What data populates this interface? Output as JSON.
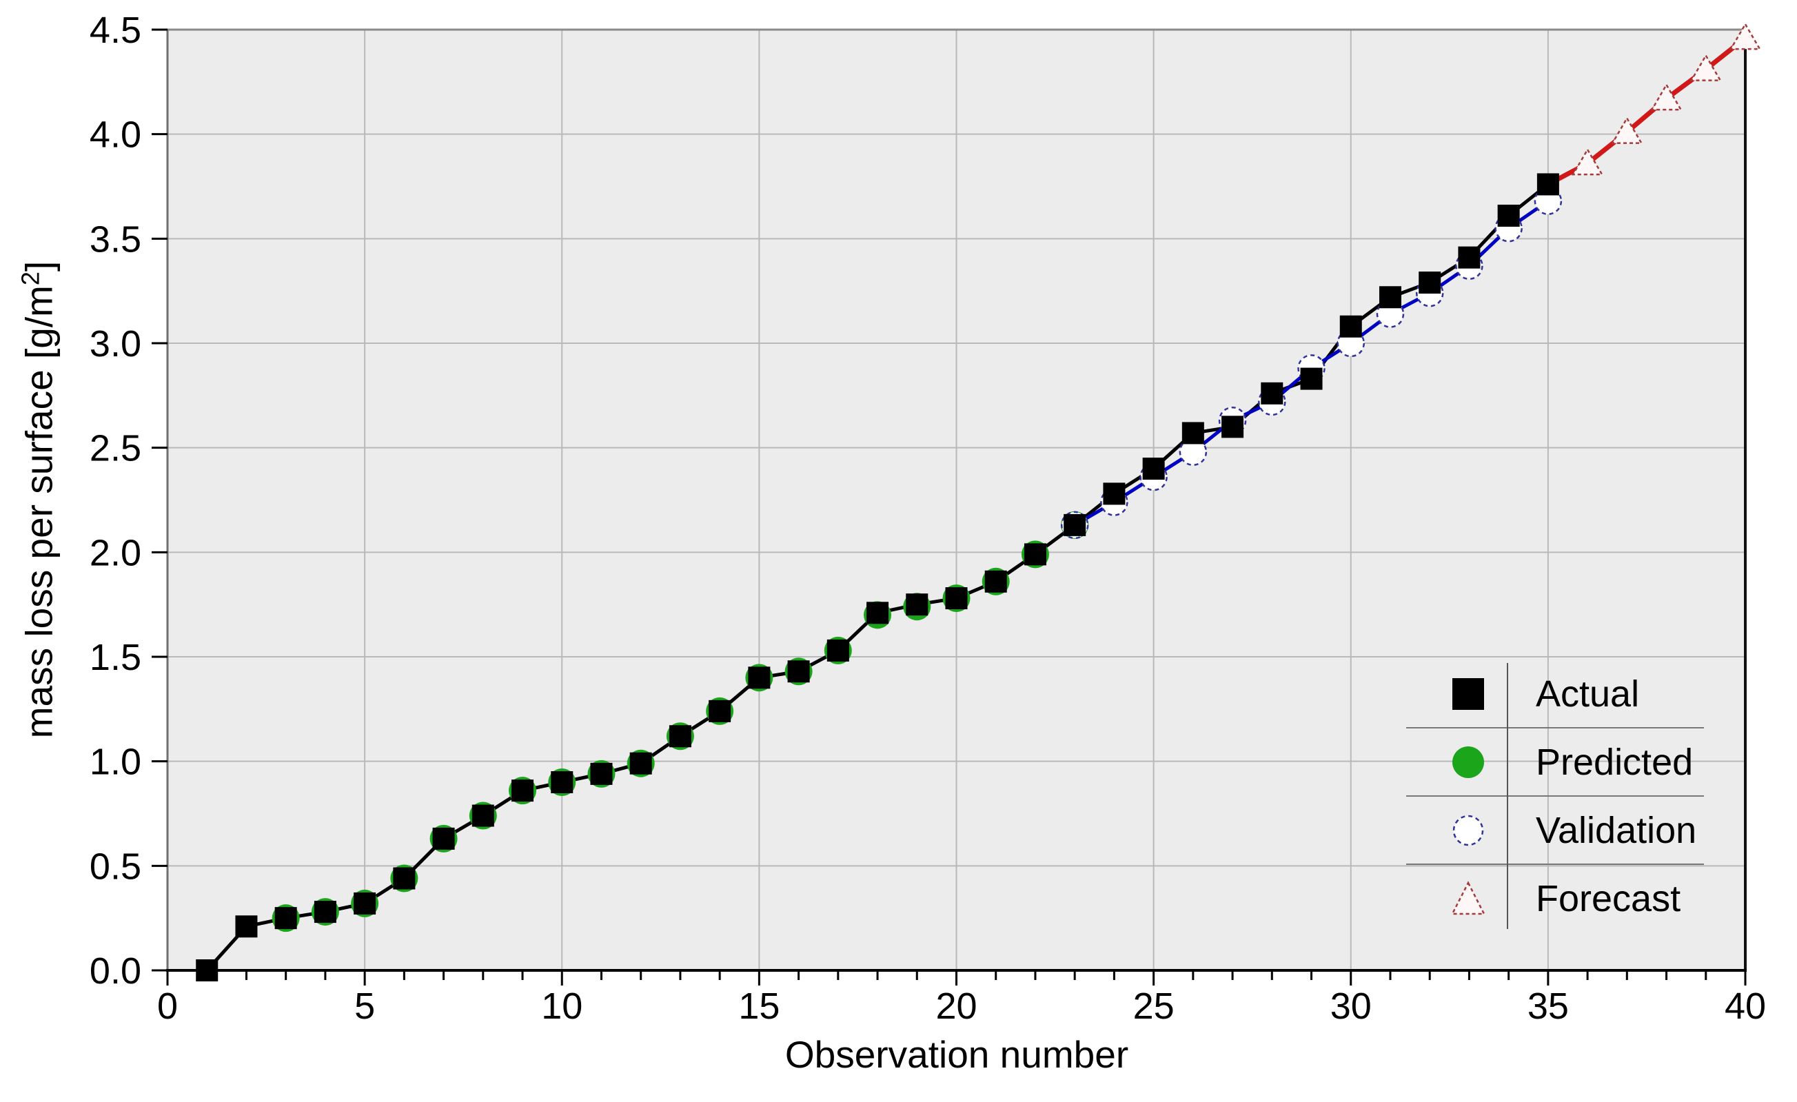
{
  "chart_data": {
    "type": "line",
    "title": "",
    "xlabel": "Observation number",
    "ylabel": "mass loss per surface [g/m²]",
    "ylabel_prefix": "mass loss per surface [g/m",
    "ylabel_sup": "2",
    "ylabel_suffix": "]",
    "xlim": [
      0,
      40
    ],
    "ylim": [
      0,
      4.5
    ],
    "grid": true,
    "legend_position": "bottom-right",
    "x_ticks": {
      "values": [
        0,
        5,
        10,
        15,
        20,
        25,
        30,
        35,
        40
      ],
      "labels": [
        "0",
        "5",
        "10",
        "15",
        "20",
        "25",
        "30",
        "35",
        "40"
      ],
      "minor_step": 1
    },
    "y_ticks": {
      "values": [
        0,
        0.5,
        1,
        1.5,
        2,
        2.5,
        3,
        3.5,
        4,
        4.5
      ],
      "labels": [
        "0.0",
        "0.5",
        "1.0",
        "1.5",
        "2.0",
        "2.5",
        "3.0",
        "3.5",
        "4.0",
        "4.5"
      ]
    },
    "series": [
      {
        "name": "Actual",
        "marker": "filled-square-icon",
        "line": true,
        "x": [
          1,
          2,
          3,
          4,
          5,
          6,
          7,
          8,
          9,
          10,
          11,
          12,
          13,
          14,
          15,
          16,
          17,
          18,
          19,
          20,
          21,
          22,
          23,
          24,
          25,
          26,
          27,
          28,
          29,
          30,
          31,
          32,
          33,
          34,
          35
        ],
        "values": [
          0.0,
          0.21,
          0.25,
          0.28,
          0.32,
          0.44,
          0.63,
          0.74,
          0.86,
          0.9,
          0.94,
          0.99,
          1.12,
          1.24,
          1.4,
          1.43,
          1.53,
          1.71,
          1.75,
          1.78,
          1.86,
          1.99,
          2.13,
          2.28,
          2.4,
          2.57,
          2.6,
          2.76,
          2.83,
          3.08,
          3.22,
          3.29,
          3.41,
          3.61,
          3.76
        ]
      },
      {
        "name": "Predicted",
        "marker": "filled-circle-icon",
        "line": false,
        "x": [
          3,
          4,
          5,
          6,
          7,
          8,
          9,
          10,
          11,
          12,
          13,
          14,
          15,
          16,
          17,
          18,
          19,
          20,
          21,
          22,
          23
        ],
        "values": [
          0.25,
          0.28,
          0.32,
          0.44,
          0.63,
          0.74,
          0.86,
          0.9,
          0.94,
          0.99,
          1.12,
          1.24,
          1.4,
          1.43,
          1.53,
          1.7,
          1.74,
          1.78,
          1.86,
          1.99,
          2.13
        ]
      },
      {
        "name": "Validation",
        "marker": "open-circle-icon",
        "line": true,
        "x": [
          23,
          24,
          25,
          26,
          27,
          28,
          29,
          30,
          31,
          32,
          33,
          34,
          35
        ],
        "values": [
          2.13,
          2.24,
          2.36,
          2.48,
          2.63,
          2.72,
          2.88,
          3.0,
          3.14,
          3.24,
          3.37,
          3.55,
          3.68
        ]
      },
      {
        "name": "Forecast",
        "marker": "open-triangle-icon",
        "line": true,
        "skip_first_marker": true,
        "x": [
          35,
          36,
          37,
          38,
          39,
          40
        ],
        "values": [
          3.76,
          3.86,
          4.01,
          4.17,
          4.31,
          4.46
        ]
      }
    ]
  },
  "legend": {
    "items": [
      {
        "label": "Actual",
        "marker": "filled-square-icon"
      },
      {
        "label": "Predicted",
        "marker": "filled-circle-icon"
      },
      {
        "label": "Validation",
        "marker": "open-circle-icon"
      },
      {
        "label": "Forecast",
        "marker": "open-triangle-icon"
      }
    ]
  },
  "colors": {
    "plot_bg": "#ececec",
    "grid": "#b9b9b9",
    "frame_gray": "#8a8a8a",
    "axis_black": "#000000",
    "text": "#000000",
    "actual": "#000000",
    "predicted": "#1aa51a",
    "validation_line": "#0000c4",
    "validation_outline": "#32329b",
    "validation_fill": "#ffffff",
    "forecast_line": "#d01818",
    "forecast_outline": "#a43a3a",
    "forecast_fill": "#fdf7f7"
  }
}
